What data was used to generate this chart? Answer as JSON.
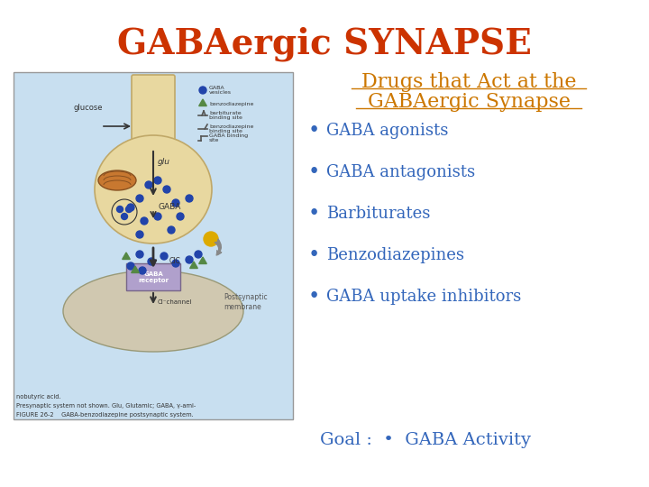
{
  "title": "GABAergic SYNAPSE",
  "title_color": "#CC3300",
  "title_fontsize": 28,
  "subtitle_line1": "Drugs that Act at the",
  "subtitle_line2": "GABAergic Synapse",
  "subtitle_color": "#CC7700",
  "subtitle_fontsize": 16,
  "bullet_items": [
    "GABA agonists",
    "GABA antagonists",
    "Barbiturates",
    "Benzodiazepines",
    "GABA uptake inhibitors"
  ],
  "bullet_color": "#3366BB",
  "bullet_fontsize": 13,
  "goal_text": "Goal :  •  GABA Activity",
  "goal_color": "#3366BB",
  "goal_fontsize": 14,
  "background_color": "#FFFFFF",
  "diagram_bg": "#C8DFF0",
  "presynaptic_color": "#E8D8A0",
  "postsynaptic_color": "#D0C8B0",
  "receptor_color": "#B0A0CC",
  "figure_caption_line1": "FIGURE 26-2    GABA-benzodiazepine postsynaptic system.",
  "figure_caption_line2": "Presynaptic system not shown. Glu, Glutamic; GABA, γ-ami-",
  "figure_caption_line3": "nobutyric acid."
}
